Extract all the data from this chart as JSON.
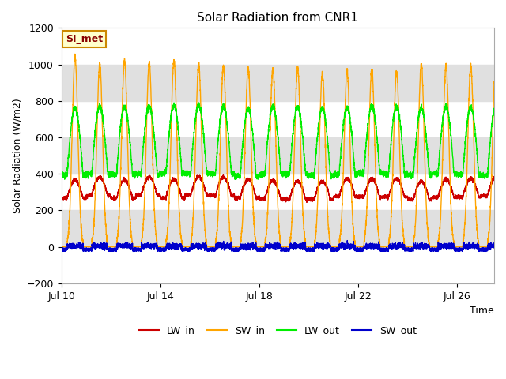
{
  "title": "Solar Radiation from CNR1",
  "xlabel": "Time",
  "ylabel": "Solar Radiation (W/m2)",
  "ylim": [
    -200,
    1200
  ],
  "xlim_days": [
    0,
    17.5
  ],
  "x_ticks_labels": [
    "Jul 10",
    "Jul 14",
    "Jul 18",
    "Jul 22",
    "Jul 26"
  ],
  "x_ticks_pos": [
    0,
    4,
    8,
    12,
    16
  ],
  "yticks": [
    -200,
    0,
    200,
    400,
    600,
    800,
    1000,
    1200
  ],
  "colors": {
    "LW_in": "#cc0000",
    "SW_in": "#ffa500",
    "LW_out": "#00ee00",
    "SW_out": "#0000cc"
  },
  "annotation_text": "SI_met",
  "annotation_fc": "#ffffcc",
  "annotation_ec": "#cc8800",
  "annotation_tc": "#880000",
  "bg_band_color": "#e0e0e0",
  "line_width": 1.0,
  "num_days": 18,
  "points_per_day": 288,
  "sw_in_peaks": [
    1040,
    1000,
    1020,
    1010,
    1020,
    1000,
    990,
    980,
    975,
    980,
    950,
    960,
    970,
    960,
    1000,
    995,
    990,
    985
  ],
  "lw_in_base": 270,
  "lw_out_base": 390,
  "lw_in_peak_bump": 100,
  "lw_out_peak_bump": 370,
  "sw_out_night_level": -20
}
